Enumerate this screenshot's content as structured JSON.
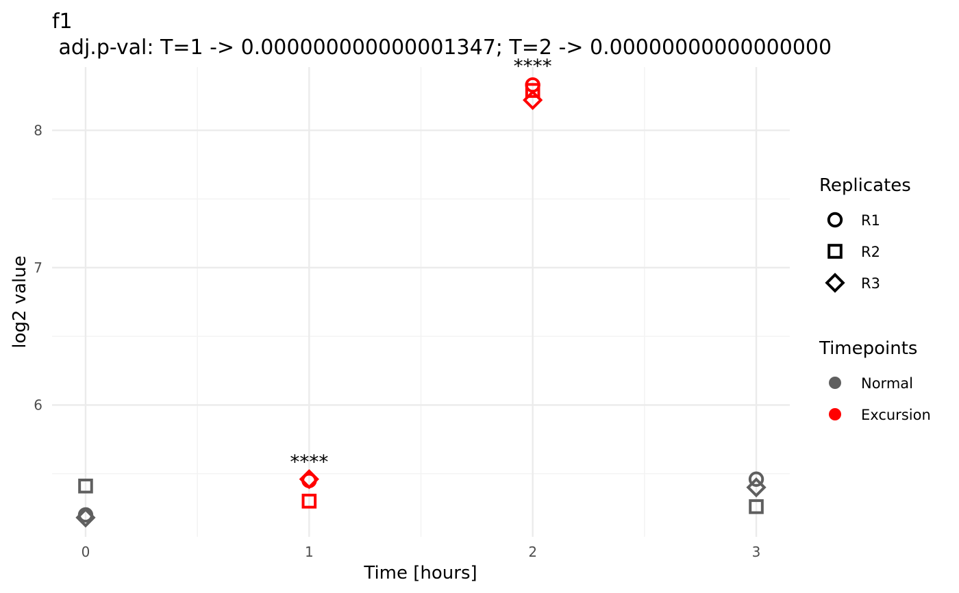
{
  "chart_data": {
    "type": "scatter",
    "title": "f1",
    "subtitle": " adj.p-val: T=1 -> 0.000000000000001347; T=2 -> 0.00000000000000000",
    "xlabel": "Time [hours]",
    "ylabel": "log2 value",
    "x_ticks": [
      "0",
      "1",
      "2",
      "3"
    ],
    "y_ticks": [
      "6",
      "7",
      "8"
    ],
    "xlim": [
      -0.15,
      3.15
    ],
    "ylim": [
      5.04,
      8.46
    ],
    "grid": true,
    "legend_placement": "right",
    "significance": [
      {
        "x": 1,
        "y": 5.46,
        "label": "****"
      },
      {
        "x": 2,
        "y": 8.34,
        "label": "****"
      }
    ],
    "points": [
      {
        "x": 0,
        "y": 5.2,
        "replicate": "R1",
        "timepoint": "Normal"
      },
      {
        "x": 0,
        "y": 5.41,
        "replicate": "R2",
        "timepoint": "Normal"
      },
      {
        "x": 0,
        "y": 5.18,
        "replicate": "R3",
        "timepoint": "Normal"
      },
      {
        "x": 1,
        "y": 5.45,
        "replicate": "R1",
        "timepoint": "Excursion"
      },
      {
        "x": 1,
        "y": 5.3,
        "replicate": "R2",
        "timepoint": "Excursion"
      },
      {
        "x": 1,
        "y": 5.46,
        "replicate": "R3",
        "timepoint": "Excursion"
      },
      {
        "x": 2,
        "y": 8.33,
        "replicate": "R1",
        "timepoint": "Excursion"
      },
      {
        "x": 2,
        "y": 8.29,
        "replicate": "R2",
        "timepoint": "Excursion"
      },
      {
        "x": 2,
        "y": 8.22,
        "replicate": "R3",
        "timepoint": "Excursion"
      },
      {
        "x": 3,
        "y": 5.46,
        "replicate": "R1",
        "timepoint": "Normal"
      },
      {
        "x": 3,
        "y": 5.26,
        "replicate": "R2",
        "timepoint": "Normal"
      },
      {
        "x": 3,
        "y": 5.4,
        "replicate": "R3",
        "timepoint": "Normal"
      }
    ],
    "legends": [
      {
        "title": "Replicates",
        "kind": "shape",
        "entries": [
          {
            "label": "R1",
            "shape": "circle"
          },
          {
            "label": "R2",
            "shape": "square"
          },
          {
            "label": "R3",
            "shape": "diamond"
          }
        ]
      },
      {
        "title": "Timepoints",
        "kind": "color",
        "entries": [
          {
            "label": "Normal",
            "color": "#5f5f5f"
          },
          {
            "label": "Excursion",
            "color": "#ff0000"
          }
        ]
      }
    ]
  },
  "colors": {
    "normal": "#5f5f5f",
    "excursion": "#ff0000",
    "grid_major": "#ebebeb",
    "grid_minor": "#f3f3f3",
    "legend_shape": "#000000"
  }
}
